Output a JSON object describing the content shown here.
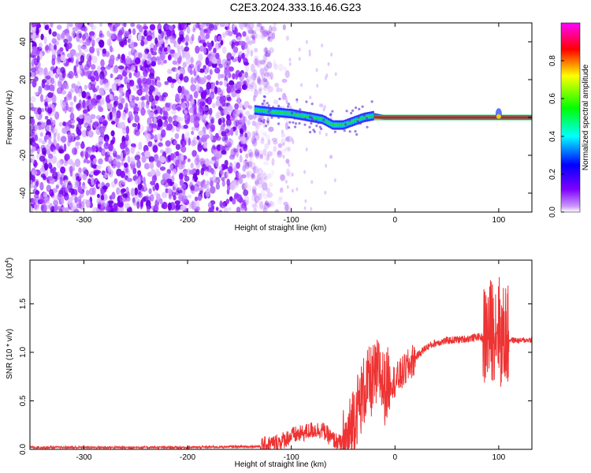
{
  "title": "C2E3.2024.333.16.46.G23",
  "chart_data": [
    {
      "type": "heatmap",
      "title": "C2E3.2024.333.16.46.G23",
      "xlabel": "Height of straight line (km)",
      "ylabel": "Frequency (Hz)",
      "xlim": [
        -352,
        132
      ],
      "ylim": [
        -50,
        50
      ],
      "xticks": [
        "-300",
        "-200",
        "-100",
        "0",
        "100"
      ],
      "yticks": [
        "-40",
        "-20",
        "0",
        "20",
        "40"
      ],
      "colorbar": {
        "label": "Normalized spectral amplitude",
        "range": [
          0,
          1
        ],
        "ticks": [
          "0.0",
          "0.2",
          "0.4",
          "0.6",
          "0.8"
        ],
        "colors": [
          "#ffffff",
          "#7f00ff",
          "#0000ff",
          "#00ffff",
          "#00ff00",
          "#ffff00",
          "#ff0000",
          "#ff00ff"
        ]
      },
      "noise_region_x": [
        -352,
        -120
      ],
      "ridge": {
        "x": [
          -135,
          -120,
          -100,
          -90,
          -80,
          -70,
          -60,
          -50,
          -40,
          -30,
          -20,
          -10,
          0,
          20,
          40,
          60,
          80,
          90,
          100,
          110,
          132
        ],
        "y": [
          4,
          3,
          2,
          1,
          0,
          -1,
          -4,
          -4,
          -2,
          0,
          1,
          0,
          0,
          0,
          0,
          0,
          0,
          0,
          0,
          0,
          0
        ]
      }
    },
    {
      "type": "line",
      "xlabel": "Height of straight line (km)",
      "ylabel": "SNR (10 * v/v)",
      "scale_note": "(x10",
      "scale_exp": "4",
      "xlim": [
        -352,
        132
      ],
      "ylim": [
        0,
        1.95
      ],
      "xticks": [
        "-300",
        "-200",
        "-100",
        "0",
        "100"
      ],
      "yticks": [
        "0.0",
        "0.5",
        "1.0",
        "1.5"
      ],
      "series": [
        {
          "color": "#ee3333",
          "x": [
            -352,
            -300,
            -200,
            -130,
            -110,
            -100,
            -90,
            -80,
            -70,
            -60,
            -50,
            -45,
            -40,
            -35,
            -30,
            -25,
            -20,
            -15,
            -10,
            -5,
            0,
            10,
            20,
            30,
            40,
            50,
            60,
            70,
            80,
            85,
            90,
            95,
            100,
            103,
            106,
            110,
            120,
            132
          ],
          "y": [
            0.02,
            0.02,
            0.02,
            0.03,
            0.08,
            0.14,
            0.16,
            0.2,
            0.2,
            0.1,
            0.05,
            0.1,
            0.35,
            0.45,
            0.6,
            0.68,
            0.72,
            0.8,
            0.62,
            0.72,
            0.7,
            0.82,
            0.95,
            1.05,
            1.1,
            1.12,
            1.13,
            1.14,
            1.16,
            1.15,
            1.2,
            1.25,
            1.3,
            1.1,
            1.2,
            1.13,
            1.12,
            1.13
          ]
        }
      ]
    }
  ]
}
